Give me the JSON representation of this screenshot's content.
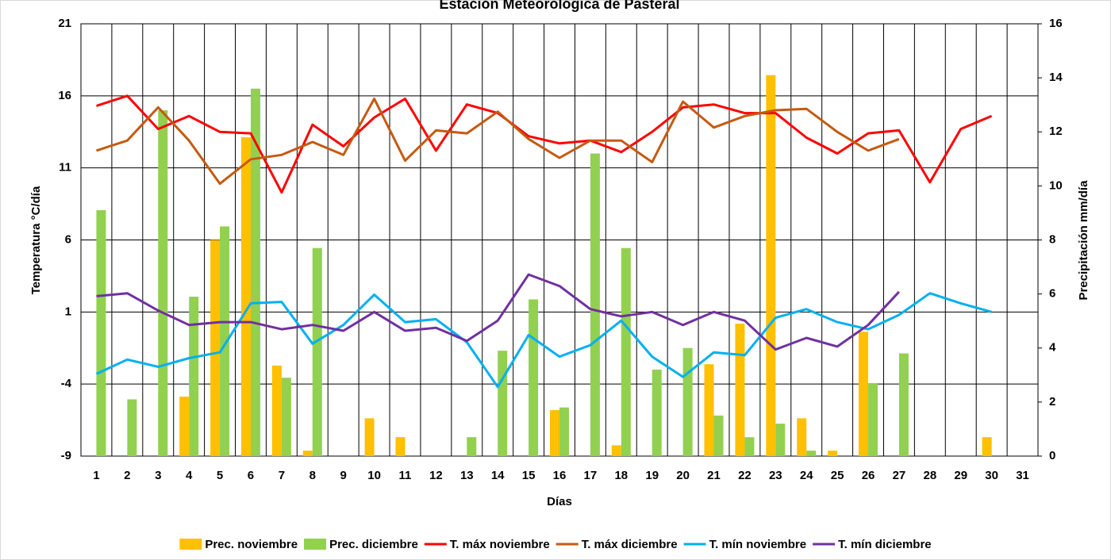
{
  "chart_data": {
    "type": "bar",
    "title": "Estación Meteorológica de Pasteral",
    "x_label": "Días",
    "y_label": "Temperatura °C/día",
    "y2_label": "Precipitación mm/día",
    "categories": [
      "1",
      "2",
      "3",
      "4",
      "5",
      "6",
      "7",
      "8",
      "9",
      "10",
      "11",
      "12",
      "13",
      "14",
      "15",
      "16",
      "17",
      "18",
      "19",
      "20",
      "21",
      "22",
      "23",
      "24",
      "25",
      "26",
      "27",
      "28",
      "29",
      "30",
      "31"
    ],
    "ylim": [
      -9,
      21
    ],
    "yticks": [
      -9,
      -4,
      1,
      6,
      11,
      16,
      21
    ],
    "y2lim": [
      0,
      16
    ],
    "y2ticks": [
      0,
      2,
      4,
      6,
      8,
      10,
      12,
      14,
      16
    ],
    "grid": true,
    "legend": "bottom",
    "series": [
      {
        "name": "Prec. noviembre",
        "type": "bar",
        "axis": "y2",
        "color": "#ffc000",
        "values": [
          0,
          0,
          0,
          2.2,
          8.0,
          11.8,
          3.35,
          0.2,
          0,
          1.4,
          0.7,
          0,
          0,
          0,
          0,
          1.7,
          0,
          0.4,
          0,
          0,
          3.4,
          4.9,
          14.1,
          1.4,
          0.2,
          4.6,
          0,
          0,
          0,
          0.7,
          null
        ]
      },
      {
        "name": "Prec. diciembre",
        "type": "bar",
        "axis": "y2",
        "color": "#92d050",
        "values": [
          9.1,
          2.1,
          12.8,
          5.9,
          8.5,
          13.6,
          2.9,
          7.7,
          0,
          0,
          0,
          0,
          0.7,
          3.9,
          5.8,
          1.8,
          11.2,
          7.7,
          3.2,
          4.0,
          1.5,
          0.7,
          1.2,
          0.2,
          0,
          2.7,
          3.8,
          0,
          0,
          0,
          0
        ]
      },
      {
        "name": "T. máx noviembre",
        "type": "line",
        "color": "#ff0000",
        "values": [
          15.3,
          16.0,
          13.7,
          14.6,
          13.5,
          13.4,
          9.3,
          14.0,
          12.5,
          14.5,
          15.8,
          12.2,
          15.4,
          14.8,
          13.2,
          12.7,
          12.9,
          12.1,
          13.5,
          15.2,
          15.4,
          14.8,
          14.8,
          13.1,
          12.0,
          13.4,
          13.6,
          10.0,
          13.7,
          14.6,
          null
        ]
      },
      {
        "name": "T. máx diciembre",
        "type": "line",
        "color": "#c55a11",
        "values": [
          12.2,
          12.9,
          15.2,
          12.9,
          9.9,
          11.6,
          11.9,
          12.8,
          11.9,
          15.8,
          11.5,
          13.6,
          13.4,
          14.9,
          13.0,
          11.7,
          12.9,
          12.9,
          11.4,
          15.6,
          13.8,
          14.6,
          15.0,
          15.1,
          13.5,
          12.2,
          13.0,
          null,
          null,
          null,
          null
        ]
      },
      {
        "name": "T. mín noviembre",
        "type": "line",
        "color": "#00b0f0",
        "values": [
          -3.3,
          -2.3,
          -2.8,
          -2.2,
          -1.8,
          1.6,
          1.7,
          -1.2,
          0.1,
          2.2,
          0.3,
          0.5,
          -1.1,
          -4.2,
          -0.6,
          -2.1,
          -1.3,
          0.4,
          -2.1,
          -3.5,
          -1.8,
          -2.0,
          0.6,
          1.2,
          0.3,
          -0.2,
          0.8,
          2.3,
          1.6,
          1.0,
          null
        ]
      },
      {
        "name": "T. mín diciembre",
        "type": "line",
        "color": "#7030a0",
        "values": [
          2.1,
          2.3,
          1.1,
          0.1,
          0.3,
          0.3,
          -0.2,
          0.1,
          -0.3,
          1.0,
          -0.3,
          -0.1,
          -1.0,
          0.4,
          3.6,
          2.8,
          1.2,
          0.7,
          1.0,
          0.1,
          1.0,
          0.4,
          -1.6,
          -0.8,
          -1.4,
          0.1,
          2.4,
          null,
          null,
          null,
          null
        ]
      }
    ]
  }
}
